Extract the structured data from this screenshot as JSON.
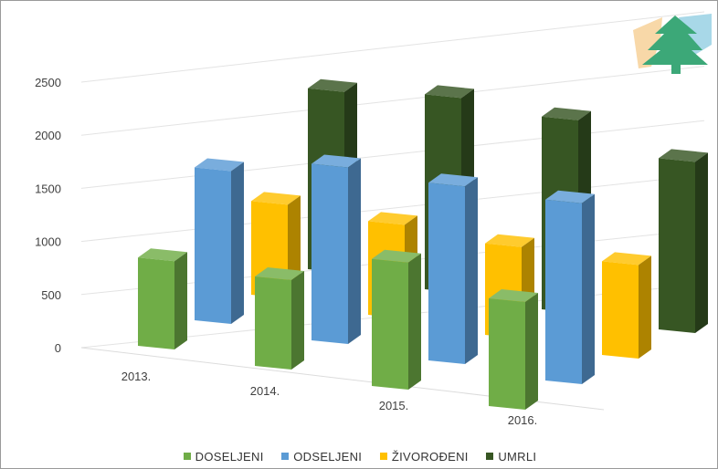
{
  "chart_data": {
    "type": "bar",
    "subtype": "3d-column",
    "categories": [
      "2013.",
      "2014.",
      "2015.",
      "2016."
    ],
    "series": [
      {
        "name": "DOSELJENI",
        "color": "#70ad47",
        "values": [
          820,
          830,
          1180,
          1000
        ]
      },
      {
        "name": "ODSELJENI",
        "color": "#5b9bd5",
        "values": [
          1420,
          1640,
          1650,
          1680
        ]
      },
      {
        "name": "ŽIVOROĐENI",
        "color": "#ffc000",
        "values": [
          870,
          870,
          850,
          870
        ]
      },
      {
        "name": "UMRLI",
        "color": "#375623",
        "values": [
          1680,
          1810,
          1790,
          1590
        ]
      }
    ],
    "y_ticks": [
      "0",
      "500",
      "1000",
      "1500",
      "2000",
      "2500"
    ],
    "ylim": [
      0,
      2500
    ],
    "grid": true,
    "legend_position": "bottom"
  },
  "logo": {
    "name": "tree-logo-icon",
    "colors": [
      "#f8d8a8",
      "#a8d8e8",
      "#3ca878"
    ]
  }
}
